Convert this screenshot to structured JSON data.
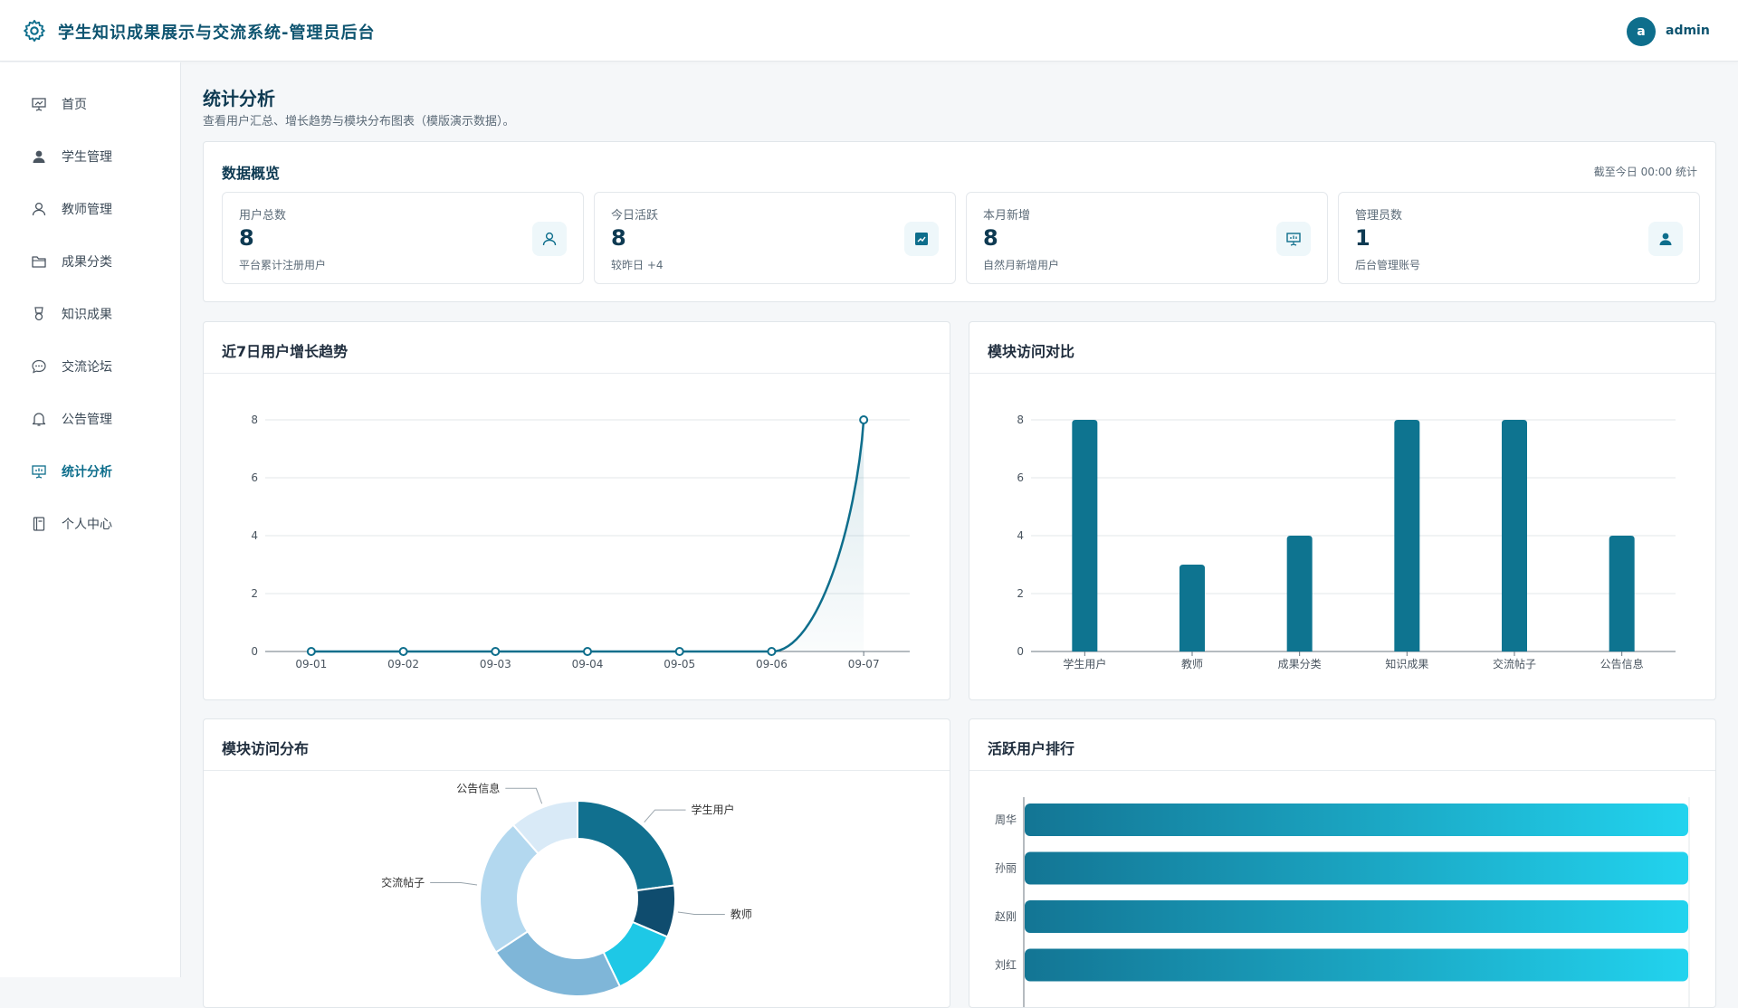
{
  "header": {
    "title": "学生知识成果展示与交流系统-管理员后台",
    "avatar_letter": "a",
    "username": "admin"
  },
  "sidebar": {
    "items": [
      {
        "label": "首页",
        "icon": "presentation-icon",
        "active": false
      },
      {
        "label": "学生管理",
        "icon": "user-filled-icon",
        "active": false
      },
      {
        "label": "教师管理",
        "icon": "user-outline-icon",
        "active": false
      },
      {
        "label": "成果分类",
        "icon": "folder-icon",
        "active": false
      },
      {
        "label": "知识成果",
        "icon": "medal-icon",
        "active": false
      },
      {
        "label": "交流论坛",
        "icon": "chat-icon",
        "active": false
      },
      {
        "label": "公告管理",
        "icon": "bell-icon",
        "active": false
      },
      {
        "label": "统计分析",
        "icon": "chart-board-icon",
        "active": true
      },
      {
        "label": "个人中心",
        "icon": "notebook-icon",
        "active": false
      }
    ]
  },
  "page": {
    "title": "统计分析",
    "subtitle": "查看用户汇总、增长趋势与模块分布图表（模版演示数据）。"
  },
  "overview": {
    "title": "数据概览",
    "note": "截至今日 00:00 统计",
    "stats": [
      {
        "label": "用户总数",
        "value": "8",
        "desc": "平台累计注册用户",
        "icon": "user-outline-icon"
      },
      {
        "label": "今日活跃",
        "value": "8",
        "desc": "较昨日 +4",
        "icon": "trend-chart-icon"
      },
      {
        "label": "本月新增",
        "value": "8",
        "desc": "自然月新增用户",
        "icon": "presentation-icon"
      },
      {
        "label": "管理员数",
        "value": "1",
        "desc": "后台管理账号",
        "icon": "user-filled-icon"
      }
    ]
  },
  "colors": {
    "primary": "#0e6e8c",
    "line": "#0e6e8c",
    "bar": "#0e7490",
    "pie": [
      "#11708f",
      "#0f4c6e",
      "#1ec8e6",
      "#7fb6d8",
      "#b3d8ef",
      "#d9eaf7"
    ],
    "hbar_start": "#137594",
    "hbar_end": "#22d3ee"
  },
  "chart_data": [
    {
      "title": "近7日用户增长趋势",
      "type": "line",
      "categories": [
        "09-01",
        "09-02",
        "09-03",
        "09-04",
        "09-05",
        "09-06",
        "09-07"
      ],
      "values": [
        0,
        0,
        0,
        0,
        0,
        0,
        8
      ],
      "ylim": [
        0,
        8
      ],
      "yticks": [
        0,
        2,
        4,
        6,
        8
      ],
      "grid": true
    },
    {
      "title": "模块访问对比",
      "type": "bar",
      "categories": [
        "学生用户",
        "教师",
        "成果分类",
        "知识成果",
        "交流帖子",
        "公告信息"
      ],
      "values": [
        8,
        3,
        4,
        8,
        8,
        4
      ],
      "ylim": [
        0,
        8
      ],
      "yticks": [
        0,
        2,
        4,
        6,
        8
      ],
      "grid": true
    },
    {
      "title": "模块访问分布",
      "type": "pie",
      "categories": [
        "学生用户",
        "教师",
        "成果分类",
        "知识成果",
        "交流帖子",
        "公告信息"
      ],
      "values": [
        8,
        3,
        4,
        8,
        8,
        4
      ],
      "donut": true,
      "visible_labels": [
        "学生用户",
        "教师",
        "交流帖子",
        "公告信息"
      ]
    },
    {
      "title": "活跃用户排行",
      "type": "bar",
      "orientation": "horizontal",
      "categories": [
        "周华",
        "孙丽",
        "赵刚",
        "刘红"
      ],
      "values": [
        10,
        10,
        10,
        10
      ]
    }
  ]
}
